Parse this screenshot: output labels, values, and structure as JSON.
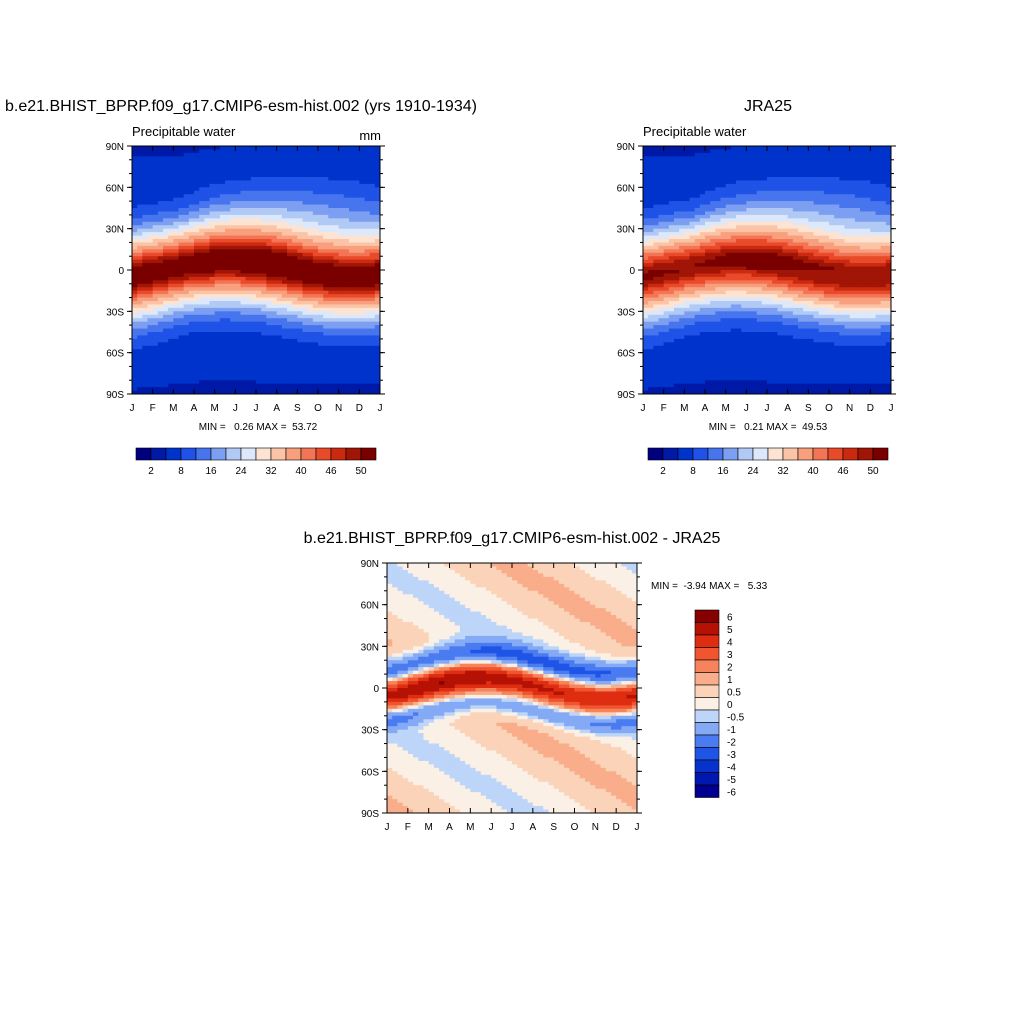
{
  "chart_data": [
    {
      "type": "heatmap",
      "title": "b.e21.BHIST_BPRP.f09_g17.CMIP6-esm-hist.002 (yrs 1910-1934)",
      "left_label": "Precipitable water",
      "units": "mm",
      "x_ticks": [
        "J",
        "F",
        "M",
        "A",
        "M",
        "J",
        "J",
        "A",
        "S",
        "O",
        "N",
        "D",
        "J"
      ],
      "y_ticks": [
        "90N",
        "60N",
        "30N",
        "0",
        "30S",
        "60S",
        "90S"
      ],
      "ylim": [
        -90,
        90
      ],
      "minmax_text": "MIN =   0.26 MAX =  53.72",
      "min": 0.26,
      "max": 53.72,
      "model": "sim",
      "colorbar": {
        "levels": [
          2,
          4,
          8,
          12,
          16,
          20,
          24,
          28,
          32,
          36,
          40,
          43,
          46,
          48,
          50
        ],
        "labels": [
          "2",
          "8",
          "16",
          "24",
          "32",
          "40",
          "46",
          "50"
        ]
      }
    },
    {
      "type": "heatmap",
      "title": "JRA25",
      "left_label": "Precipitable water",
      "x_ticks": [
        "J",
        "F",
        "M",
        "A",
        "M",
        "J",
        "J",
        "A",
        "S",
        "O",
        "N",
        "D",
        "J"
      ],
      "y_ticks": [
        "90N",
        "60N",
        "30N",
        "0",
        "30S",
        "60S",
        "90S"
      ],
      "ylim": [
        -90,
        90
      ],
      "minmax_text": "MIN =   0.21 MAX =  49.53",
      "min": 0.21,
      "max": 49.53,
      "model": "obs",
      "colorbar": {
        "levels": [
          2,
          4,
          8,
          12,
          16,
          20,
          24,
          28,
          32,
          36,
          40,
          43,
          46,
          48,
          50
        ],
        "labels": [
          "2",
          "8",
          "16",
          "24",
          "32",
          "40",
          "46",
          "50"
        ]
      }
    },
    {
      "type": "heatmap",
      "title": "b.e21.BHIST_BPRP.f09_g17.CMIP6-esm-hist.002 - JRA25",
      "x_ticks": [
        "J",
        "F",
        "M",
        "A",
        "M",
        "J",
        "J",
        "A",
        "S",
        "O",
        "N",
        "D",
        "J"
      ],
      "y_ticks": [
        "90N",
        "60N",
        "30N",
        "0",
        "30S",
        "60S",
        "90S"
      ],
      "ylim": [
        -90,
        90
      ],
      "minmax_text": "MIN =  -3.94 MAX =   5.33",
      "min": -3.94,
      "max": 5.33,
      "model": "diff",
      "colorbar": {
        "levels": [
          -6,
          -5,
          -4,
          -3,
          -2,
          -1,
          -0.5,
          0,
          0.5,
          1,
          2,
          3,
          4,
          5,
          6
        ],
        "labels": [
          "-6",
          "-5",
          "-4",
          "-3",
          "-2",
          "-1",
          "-0.5",
          "0",
          "0.5",
          "1",
          "2",
          "3",
          "4",
          "5",
          "6"
        ]
      }
    }
  ],
  "colors": {
    "abs_palette": [
      "#00007f",
      "#0019a6",
      "#0033cc",
      "#1f52e6",
      "#4775ee",
      "#7d9ff2",
      "#b0c9f5",
      "#dde8fa",
      "#fde3d1",
      "#fbc4a6",
      "#f8a07e",
      "#f37555",
      "#e84a2a",
      "#cc2a10",
      "#a01506",
      "#7a0000"
    ],
    "diff_palette": [
      "#000090",
      "#0018b0",
      "#0533cc",
      "#1f55e6",
      "#4a7bf0",
      "#85aaf5",
      "#bcd5f8",
      "#fbf0e6",
      "#fbd3b8",
      "#f9ad8a",
      "#f5845d",
      "#f0552f",
      "#de2d10",
      "#b51205",
      "#870000"
    ]
  }
}
